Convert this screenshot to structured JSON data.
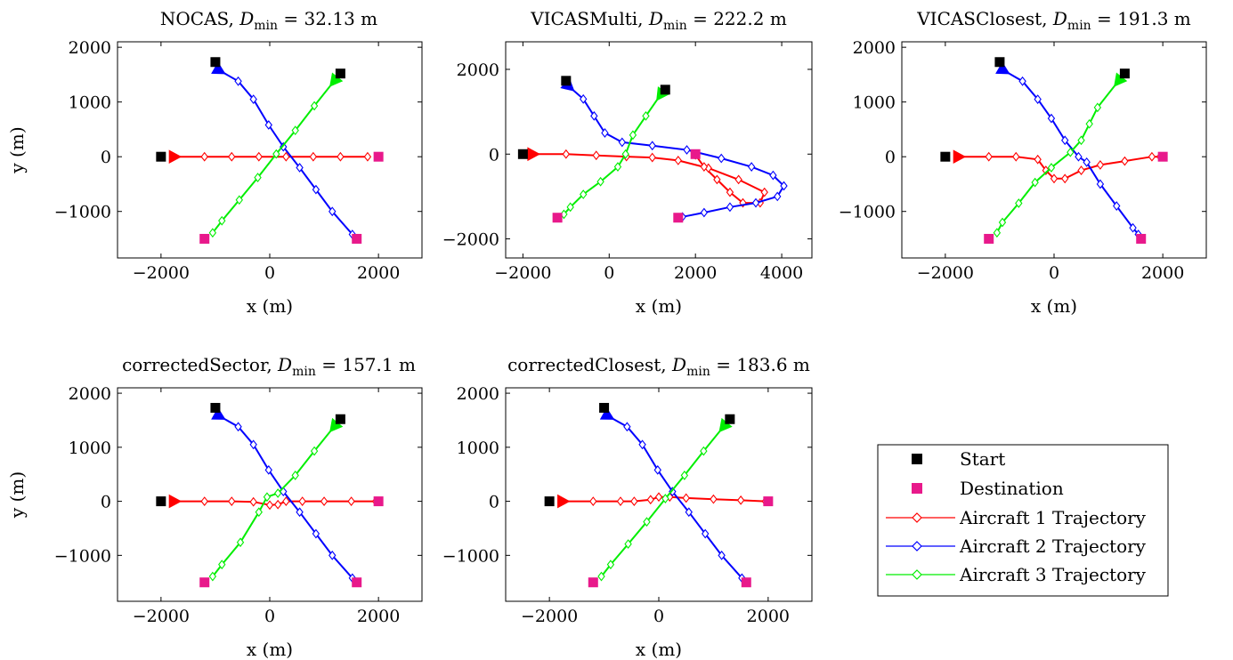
{
  "legend": {
    "start": "Start",
    "destination": "Destination",
    "aircraft1": "Aircraft 1 Trajectory",
    "aircraft2": "Aircraft 2 Trajectory",
    "aircraft3": "Aircraft 3 Trajectory"
  },
  "colors": {
    "aircraft1": "#ff0000",
    "aircraft2": "#0000ff",
    "aircraft3": "#00ee00",
    "start": "#000000",
    "destination": "#e8198b"
  },
  "chart_data": [
    {
      "type": "line",
      "title_name": "NOCAS, ",
      "title_value": " = 32.13 m",
      "dmin_symbol": "D",
      "dmin_sub": "min",
      "xlabel": "x (m)",
      "ylabel": "y (m)",
      "xlim": [
        -2800,
        2800
      ],
      "ylim": [
        -1850,
        2100
      ],
      "xticks": [
        -2000,
        0,
        2000
      ],
      "yticks": [
        -1000,
        0,
        1000,
        2000
      ],
      "starts": [
        [
          -2000,
          0
        ],
        [
          -1000,
          1730
        ],
        [
          1300,
          1520
        ]
      ],
      "destinations": [
        [
          2000,
          0
        ],
        [
          1600,
          -1500
        ],
        [
          -1200,
          -1500
        ]
      ],
      "series": [
        {
          "id": "aircraft1",
          "points": [
            [
              -1700,
              0
            ],
            [
              -1200,
              0
            ],
            [
              -700,
              0
            ],
            [
              -200,
              0
            ],
            [
              300,
              0
            ],
            [
              800,
              0
            ],
            [
              1300,
              0
            ],
            [
              1800,
              0
            ]
          ]
        },
        {
          "id": "aircraft2",
          "points": [
            [
              -880,
              1550
            ],
            [
              -580,
              1380
            ],
            [
              -300,
              1050
            ],
            [
              -20,
              580
            ],
            [
              250,
              180
            ],
            [
              550,
              -200
            ],
            [
              850,
              -600
            ],
            [
              1150,
              -1000
            ],
            [
              1520,
              -1420
            ]
          ]
        },
        {
          "id": "aircraft3",
          "points": [
            [
              1150,
              1340
            ],
            [
              820,
              930
            ],
            [
              470,
              480
            ],
            [
              120,
              50
            ],
            [
              -220,
              -380
            ],
            [
              -560,
              -790
            ],
            [
              -880,
              -1170
            ],
            [
              -1050,
              -1390
            ]
          ]
        }
      ]
    },
    {
      "type": "line",
      "title_name": "VICASMulti, ",
      "title_value": " = 222.2 m",
      "dmin_symbol": "D",
      "dmin_sub": "min",
      "xlabel": "x (m)",
      "ylabel": "y (m)",
      "xlim": [
        -2400,
        4700
      ],
      "ylim": [
        -2450,
        2650
      ],
      "xticks": [
        -2000,
        0,
        2000,
        4000
      ],
      "yticks": [
        -2000,
        0,
        2000
      ],
      "starts": [
        [
          -2000,
          0
        ],
        [
          -1000,
          1730
        ],
        [
          1300,
          1520
        ]
      ],
      "destinations": [
        [
          2000,
          0
        ],
        [
          1600,
          -1500
        ],
        [
          -1200,
          -1500
        ]
      ],
      "series": [
        {
          "id": "aircraft1",
          "points": [
            [
              -1700,
              0
            ],
            [
              -1000,
              0
            ],
            [
              -300,
              -30
            ],
            [
              400,
              -60
            ],
            [
              1000,
              -80
            ],
            [
              1600,
              -150
            ],
            [
              2300,
              -330
            ],
            [
              3000,
              -600
            ],
            [
              3600,
              -900
            ],
            [
              3500,
              -1150
            ],
            [
              3100,
              -1150
            ],
            [
              2800,
              -900
            ],
            [
              2500,
              -600
            ],
            [
              2200,
              -300
            ],
            [
              2000,
              -20
            ]
          ]
        },
        {
          "id": "aircraft2",
          "points": [
            [
              -880,
              1550
            ],
            [
              -600,
              1300
            ],
            [
              -350,
              900
            ],
            [
              -100,
              500
            ],
            [
              300,
              280
            ],
            [
              1000,
              200
            ],
            [
              1800,
              100
            ],
            [
              2600,
              -100
            ],
            [
              3300,
              -300
            ],
            [
              3800,
              -500
            ],
            [
              4050,
              -750
            ],
            [
              3900,
              -1000
            ],
            [
              3400,
              -1150
            ],
            [
              2800,
              -1250
            ],
            [
              2200,
              -1380
            ],
            [
              1700,
              -1480
            ]
          ]
        },
        {
          "id": "aircraft3",
          "points": [
            [
              1150,
              1340
            ],
            [
              850,
              900
            ],
            [
              550,
              450
            ],
            [
              380,
              0
            ],
            [
              200,
              -300
            ],
            [
              -200,
              -650
            ],
            [
              -600,
              -950
            ],
            [
              -900,
              -1250
            ],
            [
              -1050,
              -1420
            ]
          ]
        }
      ]
    },
    {
      "type": "line",
      "title_name": "VICASClosest, ",
      "title_value": " = 191.3 m",
      "dmin_symbol": "D",
      "dmin_sub": "min",
      "xlabel": "x (m)",
      "ylabel": "y (m)",
      "xlim": [
        -2800,
        2800
      ],
      "ylim": [
        -1850,
        2100
      ],
      "xticks": [
        -2000,
        0,
        2000
      ],
      "yticks": [
        -1000,
        0,
        1000,
        2000
      ],
      "starts": [
        [
          -2000,
          0
        ],
        [
          -1000,
          1730
        ],
        [
          1300,
          1520
        ]
      ],
      "destinations": [
        [
          2000,
          0
        ],
        [
          1600,
          -1500
        ],
        [
          -1200,
          -1500
        ]
      ],
      "series": [
        {
          "id": "aircraft1",
          "points": [
            [
              -1700,
              0
            ],
            [
              -1200,
              0
            ],
            [
              -700,
              0
            ],
            [
              -300,
              -50
            ],
            [
              -150,
              -250
            ],
            [
              0,
              -400
            ],
            [
              200,
              -400
            ],
            [
              500,
              -250
            ],
            [
              850,
              -150
            ],
            [
              1300,
              -80
            ],
            [
              1800,
              0
            ],
            [
              1950,
              0
            ]
          ]
        },
        {
          "id": "aircraft2",
          "points": [
            [
              -880,
              1550
            ],
            [
              -580,
              1380
            ],
            [
              -300,
              1050
            ],
            [
              -50,
              700
            ],
            [
              200,
              300
            ],
            [
              450,
              0
            ],
            [
              600,
              -100
            ],
            [
              850,
              -500
            ],
            [
              1150,
              -900
            ],
            [
              1450,
              -1300
            ],
            [
              1550,
              -1420
            ]
          ]
        },
        {
          "id": "aircraft3",
          "points": [
            [
              1150,
              1340
            ],
            [
              800,
              900
            ],
            [
              650,
              600
            ],
            [
              500,
              300
            ],
            [
              300,
              80
            ],
            [
              -50,
              -200
            ],
            [
              -350,
              -470
            ],
            [
              -650,
              -850
            ],
            [
              -950,
              -1200
            ],
            [
              -1050,
              -1390
            ]
          ]
        }
      ]
    },
    {
      "type": "line",
      "title_name": "correctedSector, ",
      "title_value": " = 157.1 m",
      "dmin_symbol": "D",
      "dmin_sub": "min",
      "xlabel": "x (m)",
      "ylabel": "y (m)",
      "xlim": [
        -2800,
        2800
      ],
      "ylim": [
        -1850,
        2100
      ],
      "xticks": [
        -2000,
        0,
        2000
      ],
      "yticks": [
        -1000,
        0,
        1000,
        2000
      ],
      "starts": [
        [
          -2000,
          0
        ],
        [
          -1000,
          1730
        ],
        [
          1300,
          1520
        ]
      ],
      "destinations": [
        [
          2000,
          0
        ],
        [
          1600,
          -1500
        ],
        [
          -1200,
          -1500
        ]
      ],
      "series": [
        {
          "id": "aircraft1",
          "points": [
            [
              -1700,
              0
            ],
            [
              -1200,
              0
            ],
            [
              -700,
              0
            ],
            [
              -300,
              -10
            ],
            [
              0,
              -70
            ],
            [
              150,
              -60
            ],
            [
              300,
              0
            ],
            [
              600,
              0
            ],
            [
              1000,
              0
            ],
            [
              1500,
              0
            ],
            [
              1950,
              0
            ]
          ]
        },
        {
          "id": "aircraft2",
          "points": [
            [
              -880,
              1550
            ],
            [
              -580,
              1380
            ],
            [
              -300,
              1050
            ],
            [
              -20,
              580
            ],
            [
              250,
              180
            ],
            [
              550,
              -200
            ],
            [
              850,
              -600
            ],
            [
              1150,
              -1000
            ],
            [
              1520,
              -1420
            ]
          ]
        },
        {
          "id": "aircraft3",
          "points": [
            [
              1150,
              1340
            ],
            [
              820,
              930
            ],
            [
              470,
              480
            ],
            [
              150,
              150
            ],
            [
              -50,
              80
            ],
            [
              -200,
              -200
            ],
            [
              -540,
              -760
            ],
            [
              -880,
              -1170
            ],
            [
              -1050,
              -1390
            ]
          ]
        }
      ]
    },
    {
      "type": "line",
      "title_name": "correctedClosest, ",
      "title_value": " = 183.6 m",
      "dmin_symbol": "D",
      "dmin_sub": "min",
      "xlabel": "x (m)",
      "ylabel": "y (m)",
      "xlim": [
        -2800,
        2800
      ],
      "ylim": [
        -1850,
        2100
      ],
      "xticks": [
        -2000,
        0,
        2000
      ],
      "yticks": [
        -1000,
        0,
        1000,
        2000
      ],
      "starts": [
        [
          -2000,
          0
        ],
        [
          -1000,
          1730
        ],
        [
          1300,
          1520
        ]
      ],
      "destinations": [
        [
          2000,
          0
        ],
        [
          1600,
          -1500
        ],
        [
          -1200,
          -1500
        ]
      ],
      "series": [
        {
          "id": "aircraft1",
          "points": [
            [
              -1700,
              0
            ],
            [
              -1200,
              0
            ],
            [
              -700,
              0
            ],
            [
              -450,
              0
            ],
            [
              -150,
              30
            ],
            [
              0,
              80
            ],
            [
              200,
              80
            ],
            [
              500,
              60
            ],
            [
              1000,
              40
            ],
            [
              1500,
              20
            ],
            [
              1950,
              0
            ]
          ]
        },
        {
          "id": "aircraft2",
          "points": [
            [
              -880,
              1550
            ],
            [
              -580,
              1380
            ],
            [
              -300,
              1050
            ],
            [
              -20,
              580
            ],
            [
              250,
              180
            ],
            [
              550,
              -200
            ],
            [
              850,
              -600
            ],
            [
              1150,
              -1000
            ],
            [
              1520,
              -1420
            ]
          ]
        },
        {
          "id": "aircraft3",
          "points": [
            [
              1150,
              1340
            ],
            [
              820,
              930
            ],
            [
              470,
              480
            ],
            [
              120,
              50
            ],
            [
              -220,
              -380
            ],
            [
              -560,
              -790
            ],
            [
              -880,
              -1170
            ],
            [
              -1050,
              -1390
            ]
          ]
        }
      ]
    }
  ]
}
